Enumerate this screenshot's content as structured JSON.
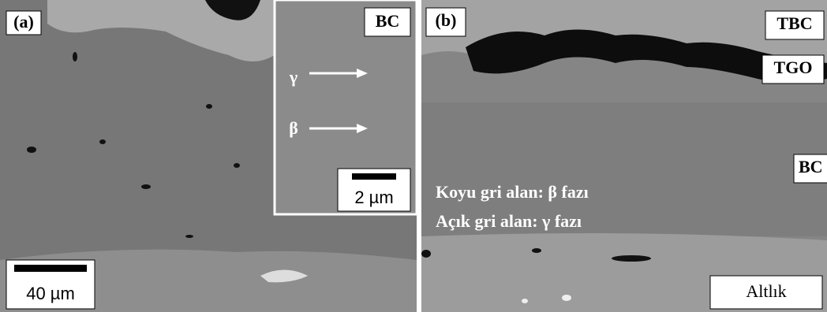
{
  "panel_a": {
    "label": "(a)",
    "inset_label": "BC",
    "gamma": "γ",
    "beta": "β",
    "inset_scale": "2 µm",
    "scale": "40 µm"
  },
  "panel_b": {
    "label": "(b)",
    "tbc": "TBC",
    "tgo": "TGO",
    "bc": "BC",
    "note_dark": "Koyu gri alan: β fazı",
    "note_light": "Açık gri alan: γ fazı",
    "substrate": "Altlık"
  }
}
